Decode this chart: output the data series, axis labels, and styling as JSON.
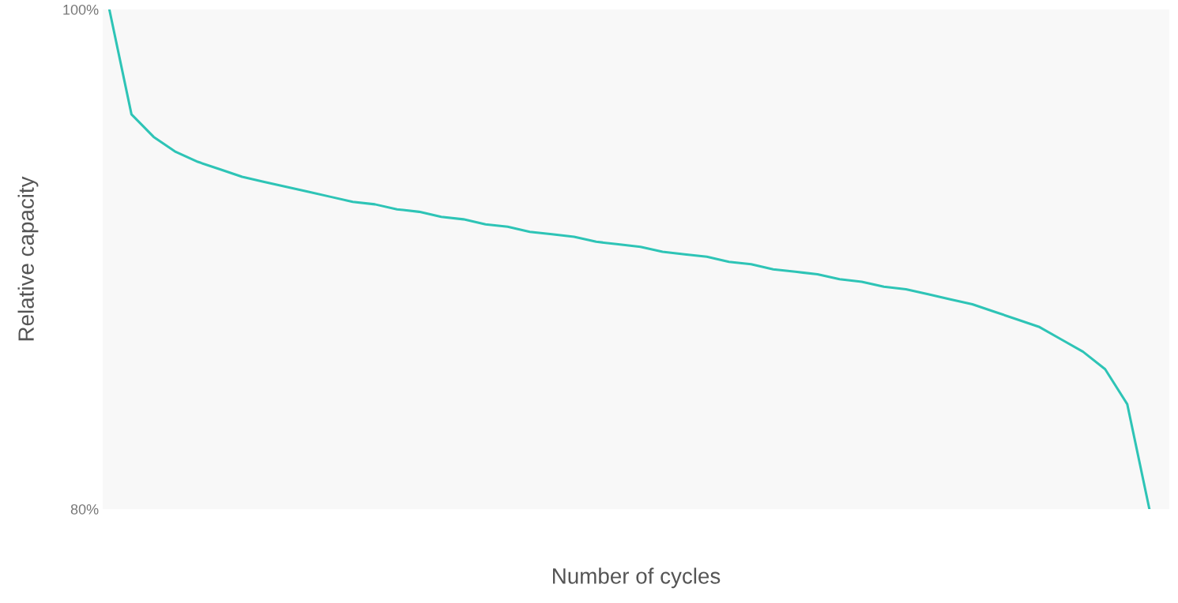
{
  "chart_data": {
    "type": "line",
    "xlabel": "Number of cycles",
    "ylabel": "Relative capacity",
    "categories": [
      null,
      null,
      null,
      null,
      null,
      null,
      null,
      null,
      null,
      null,
      null,
      null,
      null,
      null,
      null,
      null,
      null,
      null,
      null,
      null,
      null,
      null,
      null,
      null,
      null,
      null,
      null,
      null,
      null,
      null,
      null,
      null,
      null,
      null,
      null,
      null,
      null,
      null,
      null,
      null,
      null,
      null,
      null,
      null,
      null,
      null,
      null,
      null
    ],
    "series": [
      {
        "color": "#2ec4b6",
        "values": [
          100.0,
          95.8,
          94.9,
          94.3,
          93.9,
          93.6,
          93.3,
          93.1,
          92.9,
          92.7,
          92.5,
          92.3,
          92.2,
          92.0,
          91.9,
          91.7,
          91.6,
          91.4,
          91.3,
          91.1,
          91.0,
          90.9,
          90.7,
          90.6,
          90.5,
          90.3,
          90.2,
          90.1,
          89.9,
          89.8,
          89.6,
          89.5,
          89.4,
          89.2,
          89.1,
          88.9,
          88.8,
          88.6,
          88.4,
          88.2,
          87.9,
          87.6,
          87.3,
          86.8,
          86.3,
          85.6,
          84.2,
          80.0
        ]
      }
    ],
    "ylim": [
      80,
      100
    ],
    "yticks": [
      {
        "value": 80,
        "label": "80%"
      },
      {
        "value": 100,
        "label": "100%"
      }
    ],
    "grid": false,
    "legend": false,
    "marker": "none",
    "line_style": "solid"
  }
}
